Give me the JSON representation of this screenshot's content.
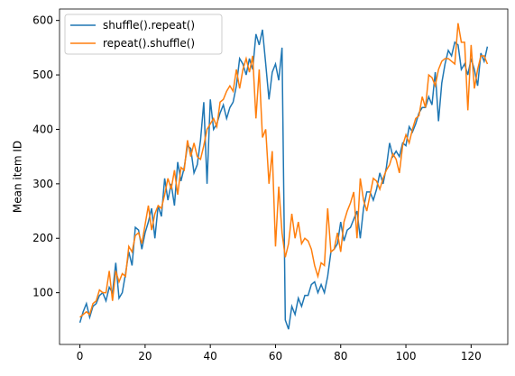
{
  "chart_data": {
    "type": "line",
    "ylabel": "Mean item ID",
    "x": [
      0,
      1,
      2,
      3,
      4,
      5,
      6,
      7,
      8,
      9,
      10,
      11,
      12,
      13,
      14,
      15,
      16,
      17,
      18,
      19,
      20,
      21,
      22,
      23,
      24,
      25,
      26,
      27,
      28,
      29,
      30,
      31,
      32,
      33,
      34,
      35,
      36,
      37,
      38,
      39,
      40,
      41,
      42,
      43,
      44,
      45,
      46,
      47,
      48,
      49,
      50,
      51,
      52,
      53,
      54,
      55,
      56,
      57,
      58,
      59,
      60,
      61,
      62,
      63,
      64,
      65,
      66,
      67,
      68,
      69,
      70,
      71,
      72,
      73,
      74,
      75,
      76,
      77,
      78,
      79,
      80,
      81,
      82,
      83,
      84,
      85,
      86,
      87,
      88,
      89,
      90,
      91,
      92,
      93,
      94,
      95,
      96,
      97,
      98,
      99,
      100,
      101,
      102,
      103,
      104,
      105,
      106,
      107,
      108,
      109,
      110,
      111,
      112,
      113,
      114,
      115,
      116,
      117,
      118,
      119,
      120,
      121,
      122,
      123,
      124,
      125
    ],
    "series": [
      {
        "name": "shuffle().repeat()",
        "color": "#1f77b4",
        "values": [
          45,
          65,
          80,
          55,
          75,
          80,
          95,
          100,
          85,
          110,
          100,
          155,
          90,
          100,
          135,
          175,
          150,
          220,
          215,
          180,
          210,
          230,
          255,
          200,
          260,
          240,
          310,
          270,
          300,
          260,
          340,
          305,
          330,
          370,
          365,
          320,
          335,
          380,
          450,
          300,
          455,
          400,
          410,
          430,
          445,
          420,
          440,
          450,
          480,
          530,
          520,
          500,
          530,
          510,
          575,
          555,
          583,
          520,
          455,
          505,
          520,
          490,
          550,
          50,
          33,
          75,
          60,
          90,
          75,
          95,
          95,
          115,
          120,
          100,
          115,
          100,
          130,
          175,
          180,
          190,
          230,
          195,
          215,
          220,
          235,
          250,
          200,
          255,
          285,
          285,
          270,
          290,
          320,
          300,
          330,
          375,
          350,
          360,
          350,
          375,
          370,
          405,
          395,
          410,
          430,
          440,
          440,
          460,
          445,
          505,
          415,
          485,
          520,
          545,
          535,
          560,
          555,
          510,
          520,
          500,
          530,
          510,
          480,
          540,
          525,
          552
        ]
      },
      {
        "name": "repeat().shuffle()",
        "color": "#ff7f0e",
        "values": [
          55,
          60,
          65,
          60,
          80,
          85,
          105,
          100,
          100,
          140,
          85,
          140,
          120,
          135,
          130,
          185,
          175,
          205,
          210,
          190,
          225,
          260,
          215,
          245,
          260,
          255,
          280,
          310,
          290,
          325,
          280,
          330,
          325,
          380,
          350,
          375,
          350,
          345,
          370,
          400,
          410,
          420,
          405,
          450,
          455,
          470,
          480,
          470,
          510,
          475,
          510,
          530,
          505,
          535,
          420,
          510,
          385,
          400,
          300,
          360,
          185,
          295,
          210,
          165,
          190,
          245,
          200,
          230,
          190,
          200,
          195,
          180,
          150,
          130,
          155,
          150,
          255,
          175,
          180,
          210,
          175,
          230,
          250,
          265,
          285,
          200,
          310,
          270,
          250,
          280,
          310,
          305,
          290,
          310,
          325,
          335,
          355,
          345,
          320,
          370,
          390,
          375,
          400,
          420,
          425,
          460,
          440,
          500,
          495,
          480,
          510,
          525,
          530,
          530,
          525,
          520,
          595,
          560,
          560,
          435,
          555,
          475,
          510,
          535,
          535,
          520
        ]
      }
    ],
    "xlim": [
      -6.25,
      131.25
    ],
    "ylim": [
      5,
      621
    ],
    "xticks": [
      0,
      20,
      40,
      60,
      80,
      100,
      120
    ],
    "yticks": [
      100,
      200,
      300,
      400,
      500,
      600
    ],
    "legend": "upper left"
  }
}
